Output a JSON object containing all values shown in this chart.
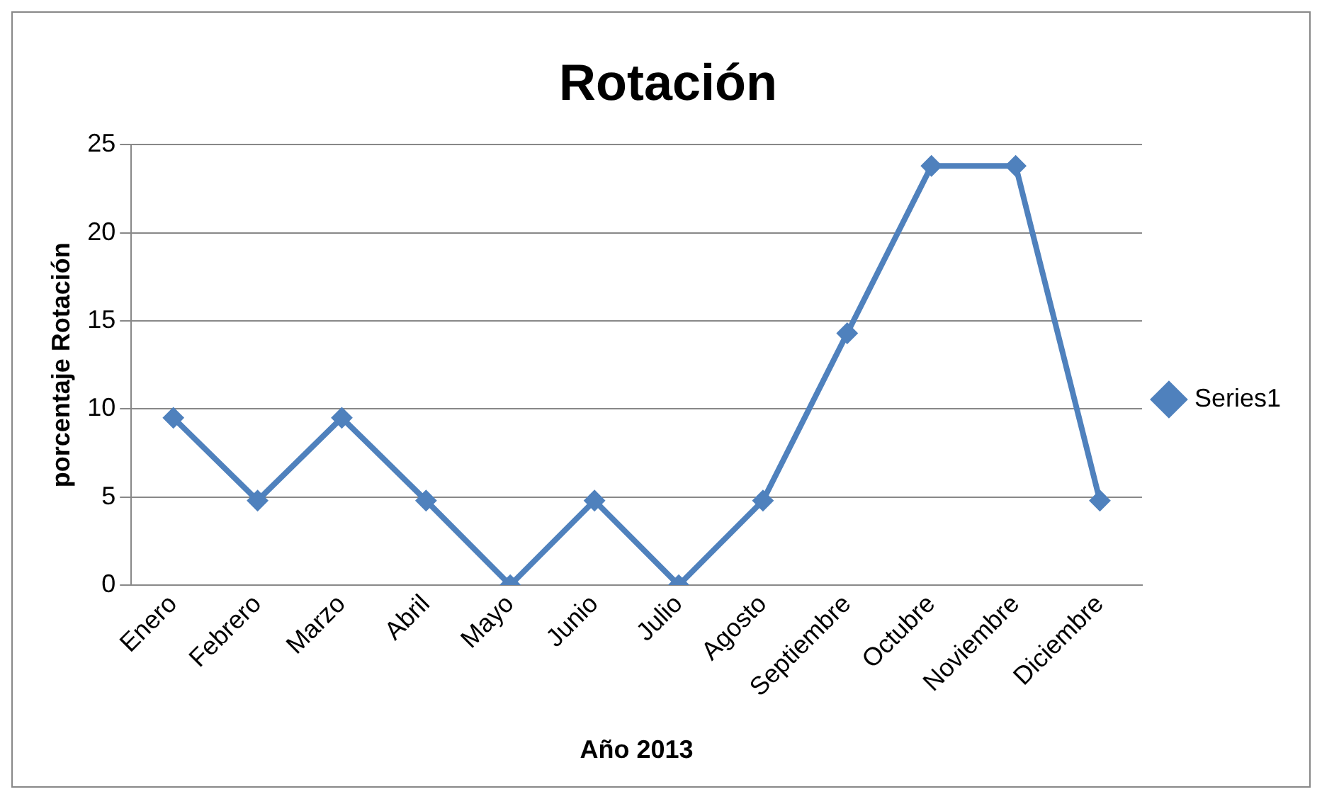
{
  "chart_data": {
    "type": "line",
    "title": "Rotación",
    "xlabel": "Año 2013",
    "ylabel": "porcentaje Rotación",
    "categories": [
      "Enero",
      "Febrero",
      "Marzo",
      "Abril",
      "Mayo",
      "Junio",
      "Julio",
      "Agosto",
      "Septiembre",
      "Octubre",
      "Noviembre",
      "Diciembre"
    ],
    "series": [
      {
        "name": "Series1",
        "color": "#4f81bd",
        "values": [
          9.5,
          4.8,
          9.5,
          4.8,
          0,
          4.8,
          0,
          4.8,
          14.3,
          23.8,
          23.8,
          4.8
        ]
      }
    ],
    "ylim": [
      0,
      25
    ],
    "yticks": [
      0,
      5,
      10,
      15,
      20,
      25
    ],
    "grid": "y",
    "legend": "right",
    "marker": "diamond",
    "line_style": "solid"
  }
}
